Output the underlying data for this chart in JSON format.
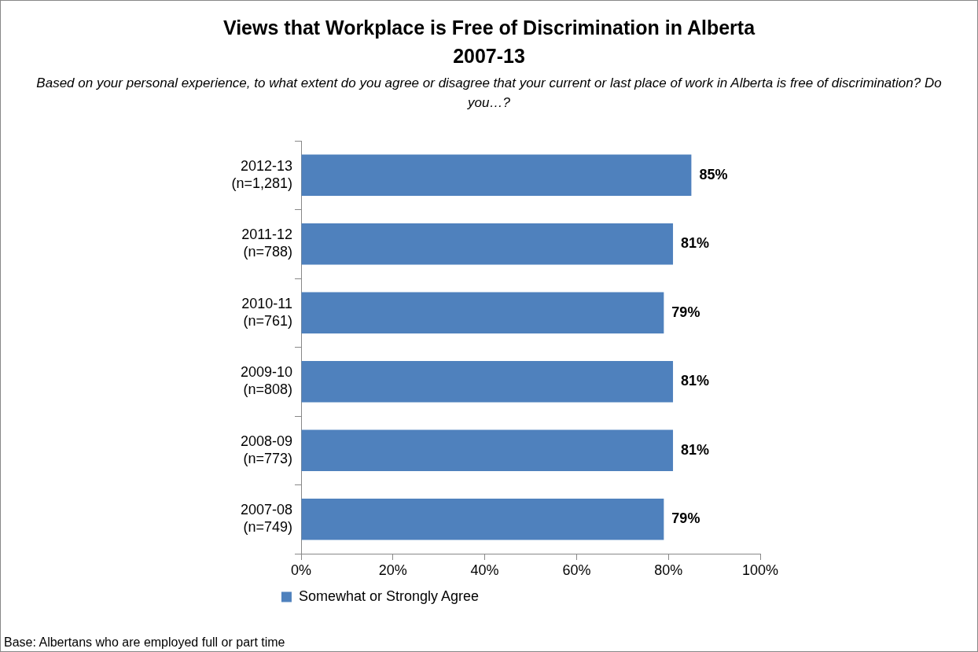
{
  "chart_data": {
    "type": "bar",
    "orientation": "horizontal",
    "title": "Views that Workplace is Free of Discrimination in Alberta\n2007-13",
    "subtitle": "Based on your personal experience, to what extent do you agree or disagree that your current or last place of work in Alberta is free of discrimination?  Do you…?",
    "categories": [
      "2012-13\n(n=1,281)",
      "2011-12\n(n=788)",
      "2010-11\n(n=761)",
      "2009-10\n(n=808)",
      "2008-09\n(n=773)",
      "2007-08\n(n=749)"
    ],
    "series": [
      {
        "name": "Somewhat or Strongly Agree",
        "color": "#4f81bd",
        "values": [
          85,
          81,
          79,
          81,
          81,
          79
        ],
        "value_labels": [
          "85%",
          "81%",
          "79%",
          "81%",
          "81%",
          "79%"
        ]
      }
    ],
    "xlim": [
      0,
      100
    ],
    "xticks": [
      {
        "value": 0,
        "label": "0%"
      },
      {
        "value": 20,
        "label": "20%"
      },
      {
        "value": 40,
        "label": "40%"
      },
      {
        "value": 60,
        "label": "60%"
      },
      {
        "value": 80,
        "label": "80%"
      },
      {
        "value": 100,
        "label": "100%"
      }
    ],
    "grid": false,
    "legend": "bottom",
    "annotations": [
      "Base: Albertans who are employed full or part time"
    ]
  }
}
